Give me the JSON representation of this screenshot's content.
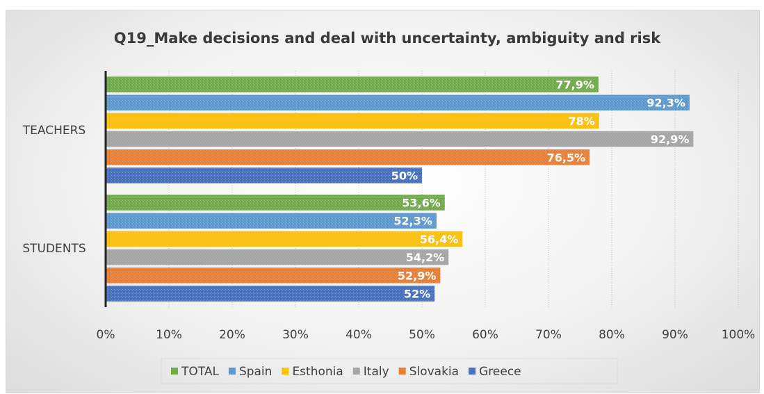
{
  "chart_data": {
    "type": "bar",
    "orientation": "horizontal",
    "title": "Q19_Make decisions and deal with uncertainty, ambiguity and risk",
    "categories": [
      "TEACHERS",
      "STUDENTS"
    ],
    "series": [
      {
        "name": "TOTAL",
        "color": "#70ad47",
        "values": [
          77.9,
          53.6
        ],
        "labels": [
          "77,9%",
          "53,6%"
        ]
      },
      {
        "name": "Spain",
        "color": "#5b9bd5",
        "values": [
          92.3,
          52.3
        ],
        "labels": [
          "92,3%",
          "52,3%"
        ]
      },
      {
        "name": "Esthonia",
        "color": "#ffc000",
        "values": [
          78,
          56.4
        ],
        "labels": [
          "78%",
          "56,4%"
        ]
      },
      {
        "name": "Italy",
        "color": "#a5a5a5",
        "values": [
          92.9,
          54.2
        ],
        "labels": [
          "92,9%",
          "54,2%"
        ]
      },
      {
        "name": "Slovakia",
        "color": "#ed7d31",
        "values": [
          76.5,
          52.9
        ],
        "labels": [
          "76,5%",
          "52,9%"
        ]
      },
      {
        "name": "Greece",
        "color": "#4472c4",
        "values": [
          50,
          52
        ],
        "labels": [
          "50%",
          "52%"
        ]
      }
    ],
    "xlim": [
      0,
      100
    ],
    "xticks": [
      "0%",
      "10%",
      "20%",
      "30%",
      "40%",
      "50%",
      "60%",
      "70%",
      "80%",
      "90%",
      "100%"
    ],
    "grid": true,
    "legend_position": "bottom"
  }
}
